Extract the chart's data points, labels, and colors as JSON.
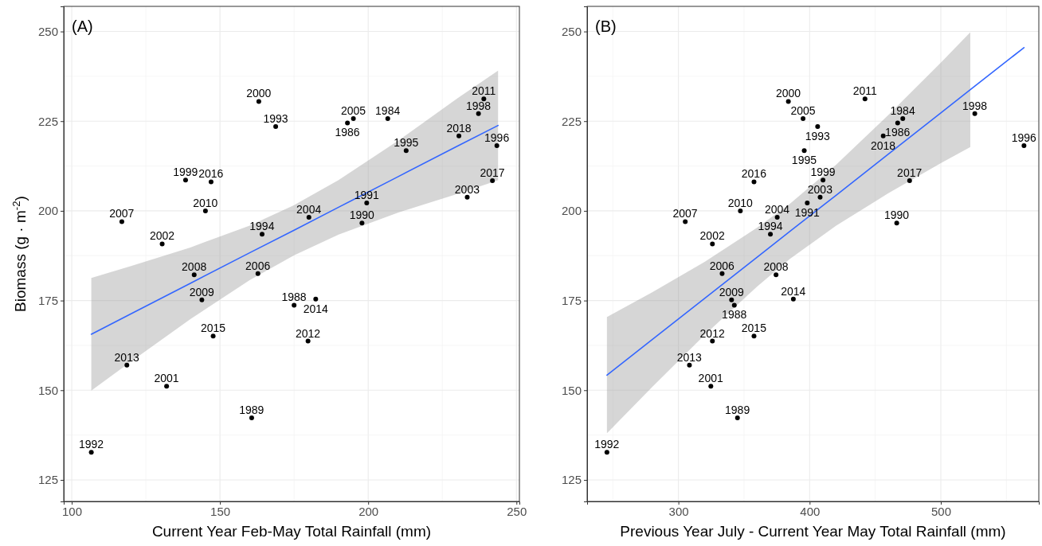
{
  "chart_data": [
    {
      "type": "scatter",
      "title": "(A)",
      "xlabel": "Current Year Feb-May Total Rainfall (mm)",
      "ylabel": "Biomass (g · m$^{-2}$)",
      "xlim": [
        97.3,
        251
      ],
      "ylim": [
        119,
        257
      ],
      "xticks": [
        100,
        150,
        200,
        250
      ],
      "yticks": [
        125,
        150,
        175,
        200,
        225,
        250
      ],
      "grid": true,
      "series": [
        {
          "marker": "circle",
          "color": "#000000",
          "x": [
            106.6,
            116.9,
            130.5,
            138.4,
            147.0,
            145.1,
            163.1,
            168.8,
            164.2,
            141.3,
            162.8,
            143.9,
            147.7,
            118.6,
            132.0,
            160.7,
            175.0,
            182.3,
            179.7,
            180.0,
            193.0,
            195.0,
            206.6,
            212.8,
            199.5,
            197.9,
            237.2,
            230.6,
            239.0,
            243.4,
            241.9,
            233.4
          ],
          "values": [
            132.7,
            197.0,
            190.8,
            208.6,
            208.1,
            200.0,
            230.5,
            223.5,
            193.5,
            182.2,
            182.5,
            175.2,
            165.1,
            157.0,
            151.1,
            142.3,
            173.7,
            175.4,
            163.7,
            198.2,
            224.5,
            225.7,
            225.7,
            216.8,
            202.2,
            196.6,
            227.1,
            220.9,
            231.2,
            218.2,
            208.4,
            203.8
          ]
        },
        {
          "type": "line",
          "marker": "none",
          "color": "#3366ff",
          "x": [
            106.6,
            120,
            140,
            160,
            175,
            190,
            210,
            230,
            243.8
          ],
          "values": [
            165.6,
            171.3,
            179.8,
            188.3,
            194.6,
            201.0,
            209.5,
            218.0,
            223.8
          ],
          "lower": [
            149.9,
            158.0,
            169.8,
            180.7,
            187.6,
            193.4,
            199.5,
            204.7,
            208.5
          ],
          "upper": [
            181.3,
            184.6,
            189.8,
            195.9,
            201.6,
            208.6,
            219.5,
            231.3,
            239.1
          ]
        }
      ],
      "annotations": [
        {
          "text": "1992",
          "x": 106.6,
          "y": 132.7
        },
        {
          "text": "2007",
          "x": 116.9,
          "y": 197.0
        },
        {
          "text": "2002",
          "x": 130.5,
          "y": 190.8
        },
        {
          "text": "1999",
          "x": 138.4,
          "y": 208.6
        },
        {
          "text": "2016",
          "x": 147.0,
          "y": 208.1
        },
        {
          "text": "2010",
          "x": 145.1,
          "y": 200.0
        },
        {
          "text": "2000",
          "x": 163.1,
          "y": 230.5
        },
        {
          "text": "1993",
          "x": 168.8,
          "y": 223.5
        },
        {
          "text": "1994",
          "x": 164.2,
          "y": 193.5
        },
        {
          "text": "2008",
          "x": 141.3,
          "y": 182.2
        },
        {
          "text": "2006",
          "x": 162.8,
          "y": 182.5
        },
        {
          "text": "2009",
          "x": 143.9,
          "y": 175.2
        },
        {
          "text": "2015",
          "x": 147.7,
          "y": 165.1
        },
        {
          "text": "2013",
          "x": 118.6,
          "y": 157.0
        },
        {
          "text": "2001",
          "x": 132.0,
          "y": 151.1
        },
        {
          "text": "1989",
          "x": 160.7,
          "y": 142.3
        },
        {
          "text": "1988",
          "x": 175.0,
          "y": 173.7
        },
        {
          "text": "2014",
          "x": 182.3,
          "y": 175.4
        },
        {
          "text": "2012",
          "x": 179.7,
          "y": 163.7
        },
        {
          "text": "2004",
          "x": 180.0,
          "y": 198.2
        },
        {
          "text": "1986",
          "x": 193.0,
          "y": 224.5
        },
        {
          "text": "2005",
          "x": 195.0,
          "y": 225.7
        },
        {
          "text": "1984",
          "x": 206.6,
          "y": 225.7
        },
        {
          "text": "1995",
          "x": 212.8,
          "y": 216.8
        },
        {
          "text": "1991",
          "x": 199.5,
          "y": 202.2
        },
        {
          "text": "1990",
          "x": 197.9,
          "y": 196.6
        },
        {
          "text": "1998",
          "x": 237.2,
          "y": 227.1
        },
        {
          "text": "2018",
          "x": 230.6,
          "y": 220.9
        },
        {
          "text": "2011",
          "x": 239.0,
          "y": 231.2
        },
        {
          "text": "1996",
          "x": 243.4,
          "y": 218.2
        },
        {
          "text": "2017",
          "x": 241.9,
          "y": 208.4
        },
        {
          "text": "2003",
          "x": 233.4,
          "y": 203.8
        }
      ]
    },
    {
      "type": "scatter",
      "title": "(B)",
      "xlabel": "Previous Year July - Current Year May Total Rainfall (mm)",
      "xlim": [
        230.4,
        574.7
      ],
      "ylim": [
        119,
        257
      ],
      "xticks": [
        300,
        400,
        500
      ],
      "yticks": [
        125,
        150,
        175,
        200,
        225,
        250
      ],
      "grid": true,
      "series": [
        {
          "marker": "circle",
          "color": "#000000",
          "x": [
            245.5,
            305.2,
            325.9,
            347.2,
            357.6,
            383.8,
            395.0,
            406.1,
            395.9,
            410.2,
            408.0,
            398.2,
            375.3,
            370.1,
            333.3,
            374.4,
            340.5,
            342.6,
            387.6,
            357.6,
            325.9,
            308.4,
            324.7,
            345.0,
            442.2,
            471.0,
            467.1,
            456.1,
            525.9,
            563.4,
            476.2,
            466.4
          ],
          "values": [
            132.7,
            197.0,
            190.8,
            200.0,
            208.1,
            230.5,
            225.7,
            223.5,
            216.8,
            208.6,
            203.8,
            202.2,
            198.2,
            193.5,
            182.5,
            182.2,
            175.2,
            173.7,
            175.4,
            165.1,
            163.7,
            157.0,
            151.1,
            142.3,
            231.2,
            225.7,
            224.5,
            220.9,
            227.1,
            218.2,
            208.4,
            196.6
          ]
        },
        {
          "type": "line",
          "marker": "none",
          "color": "#3366ff",
          "x": [
            245.5,
            280,
            320,
            360,
            385,
            420,
            460,
            500,
            522.5,
            563.4
          ],
          "values": [
            154.2,
            164.1,
            175.6,
            187.1,
            194.3,
            204.3,
            215.8,
            227.3,
            233.8,
            245.5
          ],
          "lower": [
            138.0,
            150.9,
            165.4,
            178.9,
            186.6,
            195.8,
            204.9,
            213.3,
            217.8,
            null
          ],
          "upper": [
            170.4,
            177.3,
            185.8,
            195.3,
            202.0,
            212.8,
            226.7,
            241.3,
            249.8,
            null
          ]
        }
      ],
      "annotations": [
        {
          "text": "1992",
          "x": 245.5,
          "y": 132.7
        },
        {
          "text": "2007",
          "x": 305.2,
          "y": 197.0
        },
        {
          "text": "2002",
          "x": 325.9,
          "y": 190.8
        },
        {
          "text": "2010",
          "x": 347.2,
          "y": 200.0
        },
        {
          "text": "2016",
          "x": 357.6,
          "y": 208.1
        },
        {
          "text": "2000",
          "x": 383.8,
          "y": 230.5
        },
        {
          "text": "2005",
          "x": 395.0,
          "y": 225.7
        },
        {
          "text": "1993",
          "x": 406.1,
          "y": 223.5
        },
        {
          "text": "1995",
          "x": 395.9,
          "y": 216.8
        },
        {
          "text": "1999",
          "x": 410.2,
          "y": 208.6
        },
        {
          "text": "2003",
          "x": 408.0,
          "y": 203.8
        },
        {
          "text": "1991",
          "x": 398.2,
          "y": 202.2
        },
        {
          "text": "2004",
          "x": 375.3,
          "y": 198.2
        },
        {
          "text": "1994",
          "x": 370.1,
          "y": 193.5
        },
        {
          "text": "2006",
          "x": 333.3,
          "y": 182.5
        },
        {
          "text": "2008",
          "x": 374.4,
          "y": 182.2
        },
        {
          "text": "2009",
          "x": 340.5,
          "y": 175.2
        },
        {
          "text": "1988",
          "x": 342.6,
          "y": 173.7
        },
        {
          "text": "2014",
          "x": 387.6,
          "y": 175.4
        },
        {
          "text": "2015",
          "x": 357.6,
          "y": 165.1
        },
        {
          "text": "2012",
          "x": 325.9,
          "y": 163.7
        },
        {
          "text": "2013",
          "x": 308.4,
          "y": 157.0
        },
        {
          "text": "2001",
          "x": 324.7,
          "y": 151.1
        },
        {
          "text": "1989",
          "x": 345.0,
          "y": 142.3
        },
        {
          "text": "2011",
          "x": 442.2,
          "y": 231.2
        },
        {
          "text": "1984",
          "x": 471.0,
          "y": 225.7
        },
        {
          "text": "1986",
          "x": 467.1,
          "y": 224.5
        },
        {
          "text": "2018",
          "x": 456.1,
          "y": 220.9
        },
        {
          "text": "1998",
          "x": 525.9,
          "y": 227.1
        },
        {
          "text": "1996",
          "x": 563.4,
          "y": 218.2
        },
        {
          "text": "2017",
          "x": 476.2,
          "y": 208.4
        },
        {
          "text": "1990",
          "x": 466.4,
          "y": 196.6
        }
      ]
    }
  ]
}
